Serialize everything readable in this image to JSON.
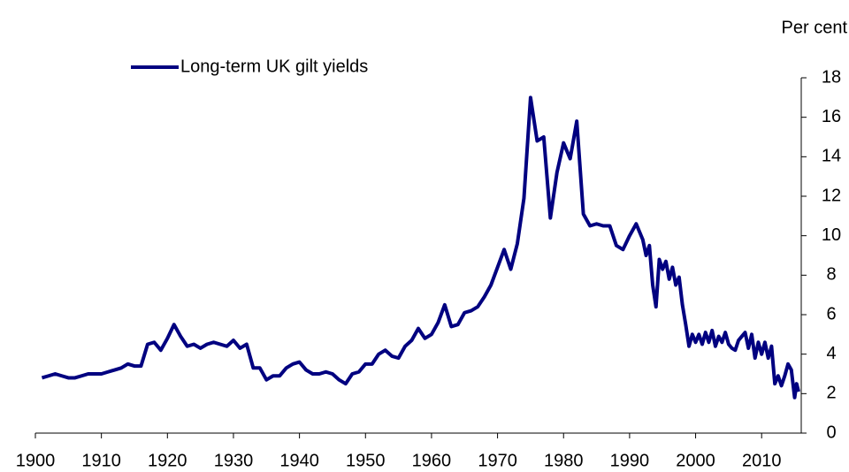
{
  "chart_data": {
    "type": "line",
    "y_label": "Per cent",
    "x": [
      1901,
      1902,
      1903,
      1904,
      1905,
      1906,
      1907,
      1908,
      1909,
      1910,
      1911,
      1912,
      1913,
      1914,
      1915,
      1916,
      1917,
      1918,
      1919,
      1920,
      1921,
      1922,
      1923,
      1924,
      1925,
      1926,
      1927,
      1928,
      1929,
      1930,
      1931,
      1932,
      1933,
      1934,
      1935,
      1936,
      1937,
      1938,
      1939,
      1940,
      1941,
      1942,
      1943,
      1944,
      1945,
      1946,
      1947,
      1948,
      1949,
      1950,
      1951,
      1952,
      1953,
      1954,
      1955,
      1956,
      1957,
      1958,
      1959,
      1960,
      1961,
      1962,
      1963,
      1964,
      1965,
      1966,
      1967,
      1968,
      1969,
      1970,
      1971,
      1972,
      1973,
      1974,
      1975,
      1976,
      1977,
      1978,
      1979,
      1980,
      1981,
      1982,
      1983,
      1984,
      1985,
      1986,
      1987,
      1988,
      1989,
      1990,
      1991,
      1992,
      1992.5,
      1993,
      1993.5,
      1994,
      1994.5,
      1995,
      1995.5,
      1996,
      1996.5,
      1997,
      1997.5,
      1998,
      1998.5,
      1999,
      1999.5,
      2000,
      2000.5,
      2001,
      2001.5,
      2002,
      2002.5,
      2003,
      2003.5,
      2004,
      2004.5,
      2005,
      2005.5,
      2006,
      2006.5,
      2007,
      2007.5,
      2008,
      2008.5,
      2009,
      2009.5,
      2010,
      2010.5,
      2011,
      2011.5,
      2012,
      2012.5,
      2013,
      2013.5,
      2014,
      2014.5,
      2015,
      2015.3,
      2015.6
    ],
    "series": [
      {
        "name": "Long-term UK gilt yields",
        "color": "#000080",
        "values": [
          2.8,
          2.9,
          3.0,
          2.9,
          2.8,
          2.8,
          2.9,
          3.0,
          3.0,
          3.0,
          3.1,
          3.2,
          3.3,
          3.5,
          3.4,
          3.4,
          4.5,
          4.6,
          4.2,
          4.8,
          5.5,
          4.9,
          4.4,
          4.5,
          4.3,
          4.5,
          4.6,
          4.5,
          4.4,
          4.7,
          4.3,
          4.5,
          3.3,
          3.3,
          2.7,
          2.9,
          2.9,
          3.3,
          3.5,
          3.6,
          3.2,
          3.0,
          3.0,
          3.1,
          3.0,
          2.7,
          2.5,
          3.0,
          3.1,
          3.5,
          3.5,
          4.0,
          4.2,
          3.9,
          3.8,
          4.4,
          4.7,
          5.3,
          4.8,
          5.0,
          5.6,
          6.5,
          5.4,
          5.5,
          6.1,
          6.2,
          6.4,
          6.9,
          7.5,
          8.4,
          9.3,
          8.3,
          9.6,
          11.9,
          17.0,
          14.8,
          15.0,
          10.9,
          13.2,
          14.7,
          13.9,
          15.8,
          11.1,
          10.5,
          10.6,
          10.5,
          10.5,
          9.5,
          9.3,
          10.0,
          10.6,
          9.8,
          9.0,
          9.5,
          7.5,
          6.4,
          8.8,
          8.3,
          8.7,
          7.8,
          8.4,
          7.5,
          7.9,
          6.5,
          5.5,
          4.4,
          5.0,
          4.6,
          5.0,
          4.5,
          5.1,
          4.6,
          5.2,
          4.4,
          4.9,
          4.6,
          5.1,
          4.5,
          4.3,
          4.2,
          4.7,
          4.9,
          5.1,
          4.3,
          5.0,
          3.8,
          4.6,
          4.0,
          4.6,
          3.8,
          4.4,
          2.5,
          2.9,
          2.4,
          2.9,
          3.5,
          3.2,
          1.8,
          2.5,
          2.1
        ]
      }
    ],
    "xlim": [
      1900,
      2016
    ],
    "xticks": [
      1900,
      1910,
      1920,
      1930,
      1940,
      1950,
      1960,
      1970,
      1980,
      1990,
      2000,
      2010
    ],
    "ylim": [
      0,
      18
    ],
    "yticks": [
      0,
      2,
      4,
      6,
      8,
      10,
      12,
      14,
      16,
      18
    ],
    "legend": "top-left"
  }
}
